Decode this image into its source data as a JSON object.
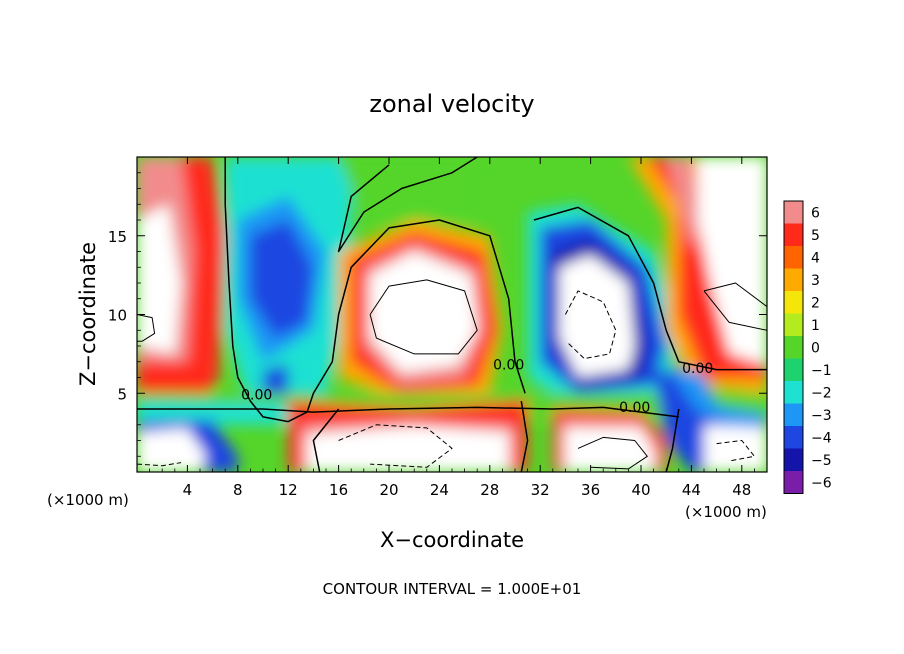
{
  "chart_data": {
    "type": "heatmap",
    "title": "zonal velocity",
    "xlabel": "X−coordinate",
    "ylabel": "Z−coordinate",
    "x_unit_left": "(×1000 m)",
    "x_unit_right": "(×1000 m)",
    "footer": "CONTOUR INTERVAL = 1.000E+01",
    "xlim": [
      0,
      50
    ],
    "ylim": [
      0,
      20
    ],
    "x_ticks": [
      4,
      8,
      12,
      16,
      20,
      24,
      28,
      32,
      36,
      40,
      44,
      48
    ],
    "y_ticks": [
      5,
      10,
      15
    ],
    "colorbar": {
      "levels": [
        6,
        5,
        4,
        3,
        2,
        1,
        0,
        -1,
        -2,
        -3,
        -4,
        -5,
        -6
      ],
      "colors": [
        "#f28c8c",
        "#ff2a1a",
        "#ff6400",
        "#ffaa00",
        "#f5e60a",
        "#b4eb1e",
        "#55d52a",
        "#1ed26e",
        "#1ee1d2",
        "#1e96f5",
        "#1e46e1",
        "#1414aa",
        "#7a1eaa"
      ]
    },
    "contour_labels": [
      {
        "text": "0.00",
        "x": 9.5,
        "z": 4.6
      },
      {
        "text": "0.00",
        "x": 29.5,
        "z": 6.5
      },
      {
        "text": "0.00",
        "x": 39.5,
        "z": 3.8
      },
      {
        "text": "0.00",
        "x": 44.5,
        "z": 6.3
      }
    ]
  }
}
